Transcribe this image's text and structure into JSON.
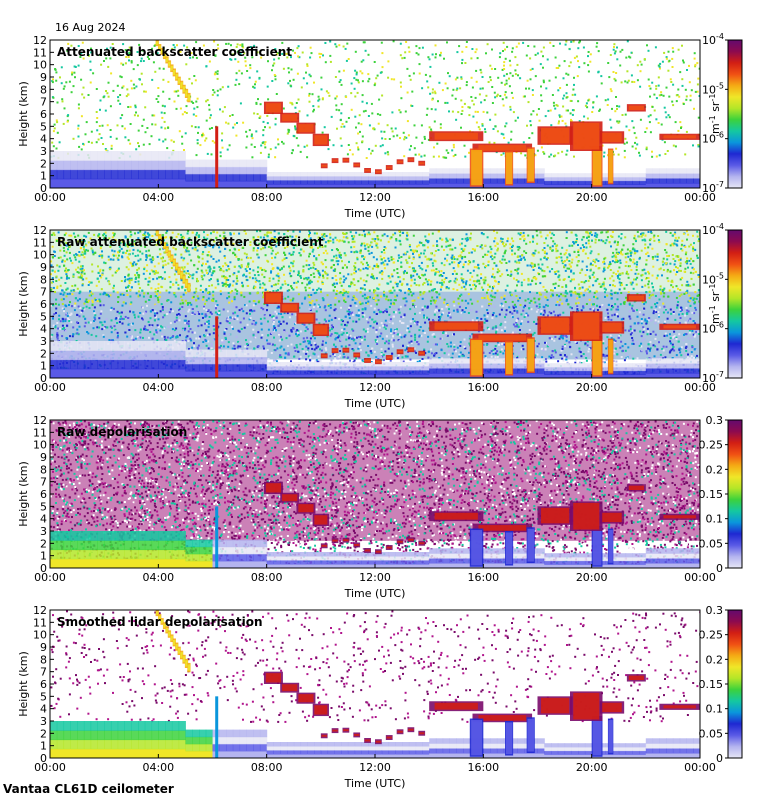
{
  "header": {
    "date": "16 Aug 2024"
  },
  "footer": {
    "instrument": "Vantaa CL61D ceilometer"
  },
  "colors": {
    "scale": [
      "#e6e6f5",
      "#b4b4ef",
      "#5a5ae6",
      "#1e28d2",
      "#0a96dc",
      "#14c8a0",
      "#3cd23c",
      "#b4e628",
      "#f0e628",
      "#f5aa14",
      "#f05014",
      "#d21e14",
      "#8c0a50",
      "#640a6e"
    ],
    "noise_purple": "#7a0a6a",
    "noise_magenta": "#b0148c"
  },
  "chart_data": [
    {
      "type": "heatmap",
      "title": "Attenuated backscatter coefficient",
      "xlabel": "Time (UTC)",
      "ylabel": "Height (km)",
      "x_ticks": [
        "00:00",
        "04:00",
        "08:00",
        "12:00",
        "16:00",
        "20:00",
        "00:00"
      ],
      "xlim_hours": [
        0,
        24
      ],
      "y_ticks": [
        "0",
        "1",
        "2",
        "3",
        "4",
        "5",
        "6",
        "7",
        "8",
        "9",
        "10",
        "11",
        "12"
      ],
      "ylim": [
        0,
        12
      ],
      "colorbar": {
        "scale": "log",
        "range": [
          1e-07,
          0.0001
        ],
        "ticks": [
          "10-7",
          "10-6",
          "10-5",
          "10-4"
        ],
        "tick_base": "10",
        "tick_exps": [
          "-7",
          "-6",
          "-5",
          "-4"
        ],
        "unit": "m-1 sr-1",
        "unit_parts": [
          "m",
          "-1",
          " sr",
          "-1"
        ]
      },
      "noise": "sparse_top"
    },
    {
      "type": "heatmap",
      "title": "Raw attenuated backscatter coefficient",
      "xlabel": "Time (UTC)",
      "ylabel": "Height (km)",
      "x_ticks": [
        "00:00",
        "04:00",
        "08:00",
        "12:00",
        "16:00",
        "20:00",
        "00:00"
      ],
      "xlim_hours": [
        0,
        24
      ],
      "y_ticks": [
        "0",
        "1",
        "2",
        "3",
        "4",
        "5",
        "6",
        "7",
        "8",
        "9",
        "10",
        "11",
        "12"
      ],
      "ylim": [
        0,
        12
      ],
      "colorbar": {
        "scale": "log",
        "range": [
          1e-07,
          0.0001
        ],
        "ticks": [
          "10-7",
          "10-6",
          "10-5",
          "10-4"
        ],
        "tick_base": "10",
        "tick_exps": [
          "-7",
          "-6",
          "-5",
          "-4"
        ],
        "unit": "m-1 sr-1",
        "unit_parts": [
          "m",
          "-1",
          " sr",
          "-1"
        ]
      },
      "noise": "dense_mixed"
    },
    {
      "type": "heatmap",
      "title": "Raw depolarisation",
      "xlabel": "Time (UTC)",
      "ylabel": "Height (km)",
      "x_ticks": [
        "00:00",
        "04:00",
        "08:00",
        "12:00",
        "16:00",
        "20:00",
        "00:00"
      ],
      "xlim_hours": [
        0,
        24
      ],
      "y_ticks": [
        "0",
        "1",
        "2",
        "3",
        "4",
        "5",
        "6",
        "7",
        "8",
        "9",
        "10",
        "11",
        "12"
      ],
      "ylim": [
        0,
        12
      ],
      "colorbar": {
        "scale": "linear",
        "range": [
          0,
          0.3
        ],
        "ticks": [
          "0",
          "0.05",
          "0.1",
          "0.15",
          "0.2",
          "0.25",
          "0.3"
        ]
      },
      "noise": "dense_purple"
    },
    {
      "type": "heatmap",
      "title": "Smoothed lidar depolarisation",
      "xlabel": "Time (UTC)",
      "ylabel": "Height (km)",
      "x_ticks": [
        "00:00",
        "04:00",
        "08:00",
        "12:00",
        "16:00",
        "20:00",
        "00:00"
      ],
      "xlim_hours": [
        0,
        24
      ],
      "y_ticks": [
        "0",
        "1",
        "2",
        "3",
        "4",
        "5",
        "6",
        "7",
        "8",
        "9",
        "10",
        "11",
        "12"
      ],
      "ylim": [
        0,
        12
      ],
      "colorbar": {
        "scale": "linear",
        "range": [
          0,
          0.3
        ],
        "ticks": [
          "0",
          "0.05",
          "0.1",
          "0.15",
          "0.2",
          "0.25",
          "0.3"
        ]
      },
      "noise": "sparse_purple"
    }
  ]
}
